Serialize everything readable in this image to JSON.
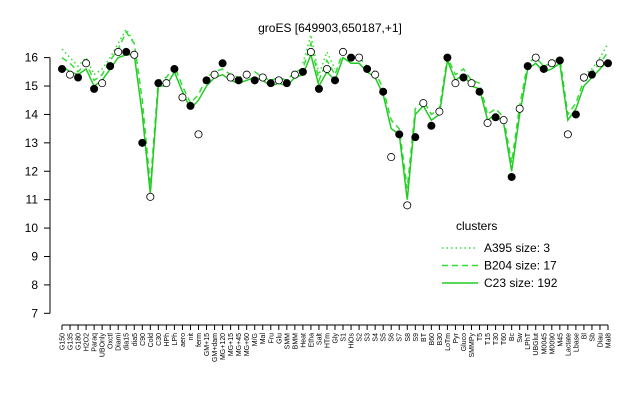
{
  "chart_data": {
    "type": "line",
    "title": "groES [649903,650187,+1]",
    "categories": [
      "G150",
      "G135",
      "G180",
      "H2O2",
      "Paraq",
      "UBOnly",
      "Oxctl",
      "Diami",
      "dia15",
      "dia5",
      "C90",
      "Cold",
      "C30",
      "HPh",
      "LPh",
      "aero",
      "nit",
      "ferm",
      "GM+15",
      "GM+dam",
      "MG+120",
      "MG+15",
      "MG+45",
      "MG+60",
      "M/G",
      "Mal",
      "Fru",
      "Glu",
      "SMM",
      "BMM",
      "Heat",
      "Etha",
      "Salt",
      "HTm",
      "Gly",
      "S1",
      "HiOs",
      "S2",
      "S3",
      "S4",
      "S5",
      "S6",
      "S7",
      "S8",
      "S9",
      "BT",
      "B60",
      "B30",
      "LoTm",
      "Pyr",
      "Gluco",
      "SMMPy",
      "T5",
      "T15",
      "T30",
      "T60",
      "Bc",
      "Sw",
      "LPhT",
      "UBGlut",
      "M0045",
      "M0090",
      "M45",
      "Lactate",
      "Lbase",
      "Bl",
      "Sb",
      "Diau",
      "Mal8"
    ],
    "legend_title": "clusters",
    "legend_position": "right",
    "series": [
      {
        "name": "A395 size: 3",
        "color": "#33dd33",
        "style": "dotted",
        "values": [
          16.3,
          16.0,
          15.7,
          16.0,
          15.4,
          15.6,
          16.0,
          16.5,
          17.0,
          16.5,
          null,
          null,
          null,
          null,
          null,
          null,
          null,
          null,
          null,
          null,
          null,
          null,
          null,
          null,
          null,
          null,
          null,
          null,
          null,
          null,
          15.8,
          16.8,
          15.4,
          16.2,
          15.6,
          null,
          null,
          null,
          null,
          null,
          null,
          null,
          null,
          null,
          null,
          null,
          null,
          null,
          null,
          null,
          null,
          null,
          null,
          null,
          null,
          null,
          null,
          null,
          null,
          null,
          null,
          null,
          null,
          null,
          null,
          15.4,
          15.6,
          16.0,
          16.5
        ]
      },
      {
        "name": "B204 size: 17",
        "color": "#33dd33",
        "style": "dashed",
        "values": [
          16.0,
          15.8,
          15.5,
          15.8,
          15.2,
          15.4,
          15.9,
          16.3,
          16.9,
          16.5,
          14.5,
          11.5,
          15.2,
          15.3,
          15.7,
          15.0,
          14.4,
          14.7,
          15.3,
          15.5,
          15.6,
          15.4,
          15.3,
          15.4,
          15.5,
          15.3,
          15.2,
          15.3,
          15.2,
          15.5,
          15.6,
          16.5,
          15.2,
          15.9,
          15.4,
          16.2,
          16.0,
          16.0,
          15.7,
          15.5,
          14.9,
          13.8,
          13.5,
          11.4,
          14.2,
          14.5,
          14.0,
          14.2,
          16.0,
          15.4,
          15.6,
          15.2,
          15.1,
          14.0,
          14.2,
          13.9,
          12.3,
          14.3,
          15.8,
          16.0,
          15.7,
          15.8,
          16.0,
          14.0,
          14.4,
          15.2,
          15.5,
          15.8,
          16.2
        ]
      },
      {
        "name": "C23 size: 192",
        "color": "#22cc22",
        "style": "solid",
        "values": [
          15.7,
          15.5,
          15.4,
          15.6,
          15.0,
          15.2,
          15.6,
          16.0,
          16.1,
          16.1,
          14.0,
          11.2,
          15.0,
          15.0,
          15.5,
          14.8,
          14.2,
          14.5,
          15.0,
          15.3,
          15.4,
          15.2,
          15.1,
          15.2,
          15.3,
          15.2,
          15.0,
          15.1,
          15.0,
          15.3,
          15.4,
          16.1,
          15.0,
          15.5,
          15.2,
          16.0,
          15.8,
          15.8,
          15.5,
          15.3,
          14.7,
          13.5,
          13.3,
          11.0,
          14.0,
          14.3,
          13.8,
          14.0,
          15.9,
          15.2,
          15.4,
          15.0,
          14.9,
          13.8,
          14.0,
          13.7,
          12.0,
          14.0,
          15.6,
          15.8,
          15.5,
          15.6,
          15.8,
          13.8,
          14.2,
          15.0,
          15.3,
          15.6,
          15.9
        ]
      }
    ],
    "points": [
      15.6,
      15.4,
      15.3,
      15.8,
      14.9,
      15.1,
      15.7,
      16.2,
      16.2,
      16.1,
      13.0,
      11.1,
      15.1,
      15.1,
      15.6,
      14.6,
      14.3,
      13.3,
      15.2,
      15.4,
      15.8,
      15.3,
      15.2,
      15.4,
      15.2,
      15.3,
      15.1,
      15.2,
      15.1,
      15.4,
      15.5,
      16.2,
      14.9,
      15.6,
      15.2,
      16.2,
      16.0,
      16.0,
      15.6,
      15.4,
      14.8,
      12.5,
      13.3,
      10.8,
      13.2,
      14.4,
      13.6,
      14.1,
      16.0,
      15.1,
      15.3,
      15.1,
      14.8,
      13.7,
      13.9,
      13.8,
      11.8,
      14.2,
      15.7,
      16.0,
      15.6,
      15.8,
      15.9,
      13.3,
      14.0,
      15.3,
      15.4,
      15.8,
      15.8
    ],
    "ylim": [
      6.8,
      17.5
    ],
    "yticks": [
      7,
      8,
      9,
      10,
      11,
      12,
      13,
      14,
      15,
      16
    ]
  }
}
